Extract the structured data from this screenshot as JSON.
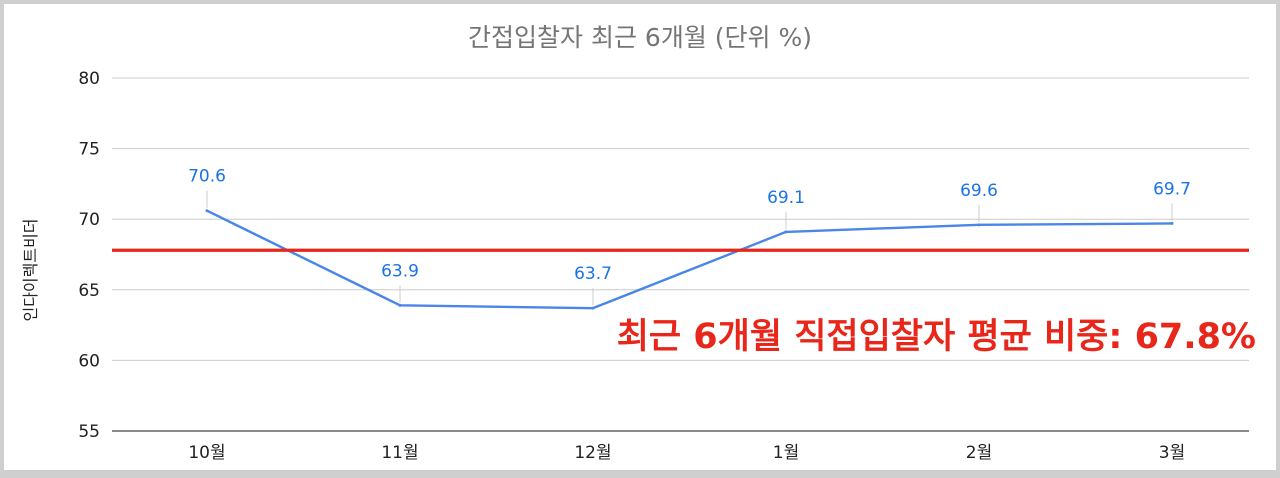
{
  "chart_data": {
    "type": "line",
    "title": "간접입찰자 최근 6개월 (단위 %)",
    "ylabel": "인다이렉트비더",
    "xlabel": "",
    "categories": [
      "10월",
      "11월",
      "12월",
      "1월",
      "2월",
      "3월"
    ],
    "series": [
      {
        "values": [
          70.6,
          63.9,
          63.7,
          69.1,
          69.6,
          69.7
        ],
        "color": "#4a86e8"
      }
    ],
    "yticks": [
      55,
      60,
      65,
      70,
      75,
      80
    ],
    "ylim": [
      55,
      80
    ],
    "grid": true,
    "reference_line": {
      "value": 67.8,
      "color": "#e8261a"
    },
    "annotation": "최근 6개월 직접입찰자 평균 비중: 67.8%",
    "data_label_color": "#1a73e8"
  }
}
